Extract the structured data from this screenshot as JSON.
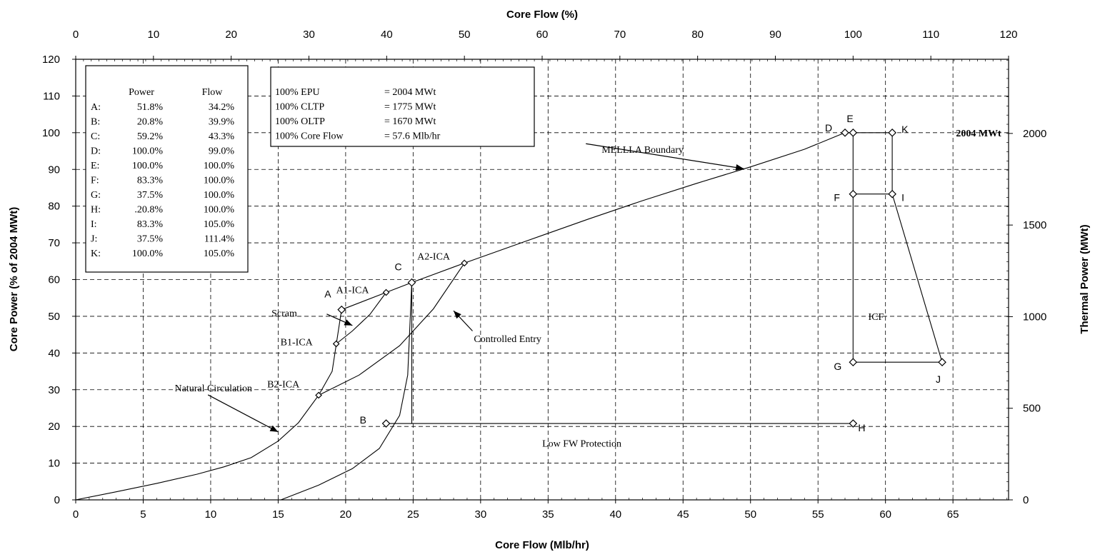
{
  "chart_data": {
    "type": "line",
    "xlabel": "Core Flow (Mlb/hr)",
    "x2label": "Core Flow (%)",
    "ylabel": "Core Power (% of 2004 MWt)",
    "y2label": "Thermal Power (MWt)",
    "xlim": [
      0,
      69.12
    ],
    "ylim": [
      0,
      120
    ],
    "x_ticks": [
      0,
      5,
      10,
      15,
      20,
      25,
      30,
      35,
      40,
      45,
      50,
      55,
      60,
      65
    ],
    "x2_ticks": [
      0,
      10,
      20,
      30,
      40,
      50,
      60,
      70,
      80,
      90,
      100,
      110,
      120
    ],
    "y_ticks": [
      0,
      10,
      20,
      30,
      40,
      50,
      60,
      70,
      80,
      90,
      100,
      110,
      120
    ],
    "y2_ticks": [
      0,
      500,
      1000,
      1500,
      2000
    ],
    "grid": true,
    "table": {
      "headers": [
        "Power",
        "Flow"
      ],
      "rows": [
        {
          "label": "A:",
          "power": "51.8%",
          "flow": "34.2%"
        },
        {
          "label": "B:",
          "power": "20.8%",
          "flow": "39.9%"
        },
        {
          "label": "C:",
          "power": "59.2%",
          "flow": "43.3%"
        },
        {
          "label": "D:",
          "power": "100.0%",
          "flow": "99.0%"
        },
        {
          "label": "E:",
          "power": "100.0%",
          "flow": "100.0%"
        },
        {
          "label": "F:",
          "power": "83.3%",
          "flow": "100.0%"
        },
        {
          "label": "G:",
          "power": "37.5%",
          "flow": "100.0%"
        },
        {
          "label": "H:",
          "power": ".20.8%",
          "flow": "100.0%"
        },
        {
          "label": "I:",
          "power": "83.3%",
          "flow": "105.0%"
        },
        {
          "label": "J:",
          "power": "37.5%",
          "flow": "111.4%"
        },
        {
          "label": "K:",
          "power": "100.0%",
          "flow": "105.0%"
        }
      ]
    },
    "info_lines": [
      {
        "name": "100% EPU",
        "value": "= 2004 MWt"
      },
      {
        "name": "100% CLTP",
        "value": "= 1775 MWt"
      },
      {
        "name": "100% OLTP",
        "value": "= 1670 MWt"
      },
      {
        "name": "100% Core Flow",
        "value": "= 57.6 Mlb/hr"
      }
    ],
    "points": [
      {
        "name": "A",
        "x": 19.7,
        "y": 51.8
      },
      {
        "name": "B",
        "x": 23.0,
        "y": 20.8
      },
      {
        "name": "C",
        "x": 24.9,
        "y": 59.2
      },
      {
        "name": "D",
        "x": 57.0,
        "y": 100.0
      },
      {
        "name": "E",
        "x": 57.6,
        "y": 100.0
      },
      {
        "name": "F",
        "x": 57.6,
        "y": 83.3
      },
      {
        "name": "G",
        "x": 57.6,
        "y": 37.5
      },
      {
        "name": "H",
        "x": 57.6,
        "y": 20.8
      },
      {
        "name": "I",
        "x": 60.5,
        "y": 83.3
      },
      {
        "name": "J",
        "x": 64.2,
        "y": 37.5
      },
      {
        "name": "K",
        "x": 60.5,
        "y": 100.0
      },
      {
        "name": "A1-ICA",
        "x": 23.0,
        "y": 56.5
      },
      {
        "name": "A2-ICA",
        "x": 28.8,
        "y": 64.5
      },
      {
        "name": "B1-ICA",
        "x": 19.3,
        "y": 42.5
      },
      {
        "name": "B2-ICA",
        "x": 18.0,
        "y": 28.5
      }
    ],
    "series": [
      {
        "id": "natural-circulation",
        "x": [
          0,
          3,
          6,
          9,
          11,
          13,
          15,
          16.5,
          18,
          19,
          19.7
        ],
        "y": [
          0,
          2.2,
          4.5,
          7,
          9,
          11.5,
          16,
          21,
          28.5,
          35,
          51.8
        ]
      },
      {
        "id": "mellla-boundary",
        "x": [
          19.7,
          23.0,
          24.9,
          28.8,
          33,
          38,
          42,
          46,
          50,
          54,
          57.0
        ],
        "y": [
          51.8,
          56.5,
          59.2,
          64.5,
          70,
          76.5,
          81.5,
          86.2,
          90.7,
          95.5,
          100
        ]
      },
      {
        "id": "scram-line",
        "x": [
          15.2,
          18,
          20.5,
          22.5,
          24,
          24.6,
          24.9
        ],
        "y": [
          0,
          4,
          8.5,
          14,
          23,
          34,
          59.2
        ]
      },
      {
        "id": "b1-a1-ica",
        "x": [
          19.3,
          20.5,
          21.8,
          23.0
        ],
        "y": [
          42.5,
          46,
          50.5,
          56.5
        ]
      },
      {
        "id": "b2-a2-ica",
        "x": [
          18.0,
          21,
          24,
          26.5,
          28.8
        ],
        "y": [
          28.5,
          34,
          42,
          52,
          64.5
        ]
      },
      {
        "id": "c-b-line",
        "x": [
          24.9,
          24.9
        ],
        "y": [
          59.2,
          20.8
        ]
      },
      {
        "id": "low-fw-protection",
        "x": [
          23.0,
          57.6
        ],
        "y": [
          20.8,
          20.8
        ]
      },
      {
        "id": "icf-boundary",
        "x": [
          57.0,
          60.5,
          60.5,
          64.2,
          57.6,
          57.6
        ],
        "y": [
          100,
          100,
          83.3,
          37.5,
          37.5,
          100
        ]
      },
      {
        "id": "f-i-line",
        "x": [
          57.6,
          60.5
        ],
        "y": [
          83.3,
          83.3
        ]
      }
    ],
    "annotations": [
      {
        "id": "mellla",
        "text": "MELLLA Boundary",
        "x": 42,
        "y": 95.5,
        "ax": 49.5,
        "ay": 90.2
      },
      {
        "id": "scram",
        "text": "Scram",
        "x": 16.4,
        "y": 51,
        "ax": 20.5,
        "ay": 47.5
      },
      {
        "id": "controlled-entry",
        "text": "Controlled Entry",
        "x": 29.5,
        "y": 44,
        "ax": 28,
        "ay": 51.5
      },
      {
        "id": "natural-circulation",
        "text": "Natural Circulation",
        "x": 10.2,
        "y": 30.5,
        "ax": 15,
        "ay": 18.5
      },
      {
        "id": "low-fw",
        "text": "Low FW Protection",
        "x": 37.5,
        "y": 15.5
      },
      {
        "id": "icf",
        "text": "ICF",
        "x": 59.3,
        "y": 50
      },
      {
        "id": "rated",
        "text": "2004 MWt",
        "x": 66.9,
        "y": 100
      }
    ]
  }
}
